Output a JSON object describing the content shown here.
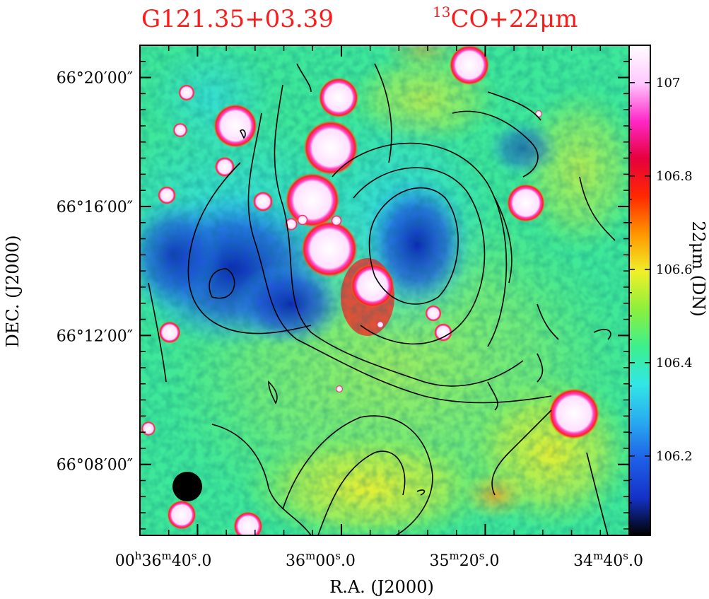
{
  "chart_data": {
    "type": "heatmap",
    "title": "G121.35+03.39",
    "subtitle_main": "CO+22μm",
    "subtitle_sup": "13",
    "xlabel": "R.A. (J2000)",
    "ylabel": "DEC. (J2000)",
    "x_ticks": [
      {
        "main": "00",
        "u1": "h",
        "m": "36",
        "u2": "m",
        "s": "40",
        "u3": "s",
        "f": ".0",
        "ra_sec": 2200
      },
      {
        "main": "",
        "u1": "",
        "m": "36",
        "u2": "m",
        "s": "00",
        "u3": "s",
        "f": ".0",
        "ra_sec": 2160
      },
      {
        "main": "",
        "u1": "",
        "m": "35",
        "u2": "m",
        "s": "20",
        "u3": "s",
        "f": ".0",
        "ra_sec": 2120
      },
      {
        "main": "",
        "u1": "",
        "m": "34",
        "u2": "m",
        "s": "40",
        "u3": "s",
        "f": ".0",
        "ra_sec": 2080
      }
    ],
    "x_range_ra_sec": [
      2216,
      2080
    ],
    "y_ticks": [
      {
        "label": "66°20′00″",
        "dec_arcmin": 20
      },
      {
        "label": "66°16′00″",
        "dec_arcmin": 16
      },
      {
        "label": "66°12′00″",
        "dec_arcmin": 12
      },
      {
        "label": "66°08′00″",
        "dec_arcmin": 8
      }
    ],
    "y_range_arcmin": [
      5.8,
      21.0
    ],
    "colorbar": {
      "label": "22μm (DN)",
      "range": [
        106.03,
        107.08
      ],
      "ticks": [
        {
          "label": "106.2",
          "value": 106.2
        },
        {
          "label": "106.4",
          "value": 106.4
        },
        {
          "label": "106.6",
          "value": 106.6
        },
        {
          "label": "106.8",
          "value": 106.8
        },
        {
          "label": "107",
          "value": 107.0
        }
      ],
      "colors": [
        "#000000",
        "#1432c8",
        "#1e5fe6",
        "#28aaf0",
        "#32e6e6",
        "#3cf08c",
        "#8cf03c",
        "#f0f028",
        "#ff9600",
        "#ff2800",
        "#e6003c",
        "#ff28c8",
        "#ffc8ff",
        "#ffffff"
      ]
    },
    "beam": "filled black circle (lower left)",
    "contour_color": "#000000",
    "colormap": "rainbow"
  }
}
